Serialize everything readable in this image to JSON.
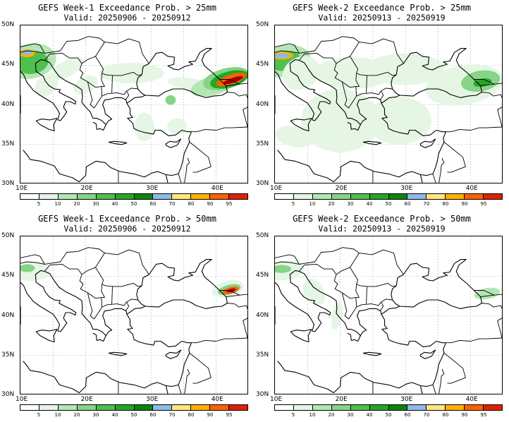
{
  "colors": {
    "bins": [
      "#ffffff",
      "#e5f6e5",
      "#b5e6b5",
      "#86d486",
      "#4fbf4f",
      "#26a626",
      "#0d850d",
      "#8fb9e6",
      "#ffe680",
      "#ffb000",
      "#ff6000",
      "#e02000",
      "#a00000",
      "#c03030"
    ],
    "coast": "#000000",
    "grid": "#999999"
  },
  "axes": {
    "lat_labels": [
      "50N",
      "45N",
      "40N",
      "35N",
      "30N"
    ],
    "lon_labels": [
      "10E",
      "20E",
      "30E",
      "40E"
    ],
    "lat_range": [
      30,
      50
    ],
    "lon_range": [
      10,
      45
    ]
  },
  "colorbar_labels": [
    "5",
    "10",
    "20",
    "30",
    "40",
    "50",
    "60",
    "70",
    "80",
    "90",
    "95"
  ],
  "panels": [
    {
      "title": "GEFS Week-1 Exceedance Prob. > 25mm",
      "valid": "Valid: 20250906 - 20250912"
    },
    {
      "title": "GEFS Week-2 Exceedance Prob. > 25mm",
      "valid": "Valid: 20250913 - 20250919"
    },
    {
      "title": "GEFS Week-1 Exceedance Prob. > 50mm",
      "valid": "Valid: 20250906 - 20250912"
    },
    {
      "title": "GEFS Week-2 Exceedance Prob. > 50mm",
      "valid": "Valid: 20250913 - 20250919"
    }
  ]
}
